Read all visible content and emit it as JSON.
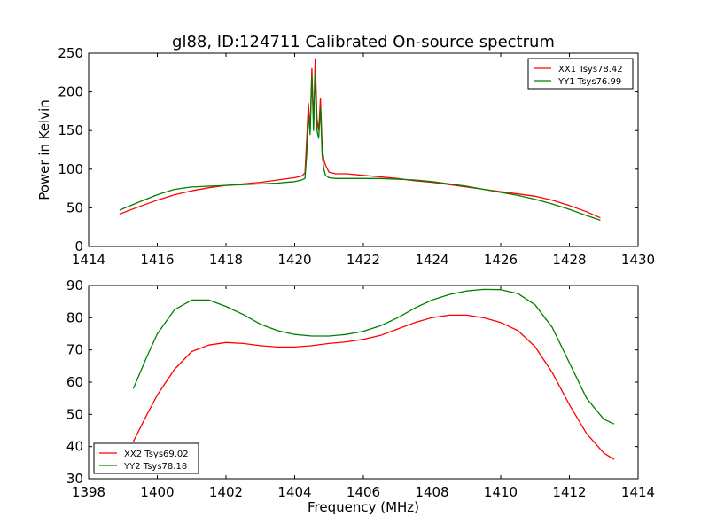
{
  "title": "gl88, ID:124711 Calibrated On-source spectrum",
  "chart_data": [
    {
      "type": "line",
      "ylabel": "Power in Kelvin",
      "xlabel": "",
      "xlim": [
        1414,
        1430
      ],
      "ylim": [
        0,
        250
      ],
      "xticks": [
        1414,
        1416,
        1418,
        1420,
        1422,
        1424,
        1426,
        1428,
        1430
      ],
      "yticks": [
        0,
        50,
        100,
        150,
        200,
        250
      ],
      "legend_position": "top-right",
      "series": [
        {
          "name": "XX1 Tsys78.42",
          "color": "#ff0000",
          "x": [
            1414.9,
            1415.5,
            1416.0,
            1416.5,
            1417.0,
            1417.5,
            1418.0,
            1418.5,
            1419.0,
            1419.5,
            1420.0,
            1420.2,
            1420.3,
            1420.35,
            1420.4,
            1420.45,
            1420.5,
            1420.55,
            1420.6,
            1420.65,
            1420.7,
            1420.75,
            1420.8,
            1420.85,
            1420.9,
            1421.0,
            1421.2,
            1421.5,
            1422.0,
            1422.5,
            1423.0,
            1423.5,
            1424.0,
            1424.5,
            1425.0,
            1425.5,
            1426.0,
            1426.5,
            1427.0,
            1427.5,
            1428.0,
            1428.5,
            1428.9
          ],
          "values": [
            42,
            52,
            60,
            67,
            72,
            76,
            79,
            81,
            83,
            86,
            89,
            91,
            95,
            140,
            185,
            150,
            230,
            160,
            243,
            165,
            150,
            192,
            130,
            112,
            105,
            96,
            94,
            94,
            92,
            90,
            88,
            85,
            83,
            80,
            77,
            74,
            71,
            68,
            65,
            60,
            53,
            45,
            37
          ]
        },
        {
          "name": "YY1 Tsys76.99",
          "color": "#008000",
          "x": [
            1414.9,
            1415.5,
            1416.0,
            1416.5,
            1417.0,
            1417.5,
            1418.0,
            1418.5,
            1419.0,
            1419.5,
            1420.0,
            1420.2,
            1420.3,
            1420.35,
            1420.4,
            1420.45,
            1420.5,
            1420.55,
            1420.6,
            1420.65,
            1420.7,
            1420.75,
            1420.8,
            1420.85,
            1420.9,
            1421.0,
            1421.2,
            1421.5,
            1422.0,
            1422.5,
            1423.0,
            1423.5,
            1424.0,
            1424.5,
            1425.0,
            1425.5,
            1426.0,
            1426.5,
            1427.0,
            1427.5,
            1428.0,
            1428.5,
            1428.9
          ],
          "values": [
            47,
            58,
            67,
            74,
            77,
            78,
            79,
            80,
            81,
            82,
            84,
            86,
            88,
            120,
            170,
            145,
            220,
            150,
            225,
            150,
            140,
            180,
            118,
            100,
            92,
            89,
            88,
            88,
            88,
            88,
            87,
            86,
            84,
            81,
            78,
            74,
            70,
            66,
            61,
            55,
            48,
            40,
            34
          ]
        }
      ]
    },
    {
      "type": "line",
      "ylabel": "",
      "xlabel": "Frequency (MHz)",
      "xlim": [
        1398,
        1414
      ],
      "ylim": [
        30,
        90
      ],
      "xticks": [
        1398,
        1400,
        1402,
        1404,
        1406,
        1408,
        1410,
        1412,
        1414
      ],
      "yticks": [
        30,
        40,
        50,
        60,
        70,
        80,
        90
      ],
      "legend_position": "bottom-left",
      "series": [
        {
          "name": "XX2 Tsys69.02",
          "color": "#ff0000",
          "x": [
            1399.3,
            1399.7,
            1400.0,
            1400.5,
            1401.0,
            1401.5,
            1402.0,
            1402.5,
            1403.0,
            1403.5,
            1404.0,
            1404.5,
            1405.0,
            1405.5,
            1406.0,
            1406.5,
            1407.0,
            1407.5,
            1408.0,
            1408.5,
            1409.0,
            1409.5,
            1410.0,
            1410.5,
            1411.0,
            1411.5,
            1412.0,
            1412.5,
            1413.0,
            1413.3
          ],
          "values": [
            41.5,
            50,
            56,
            64,
            69.5,
            71.5,
            72.3,
            72,
            71.3,
            70.9,
            70.9,
            71.3,
            72,
            72.5,
            73.3,
            74.5,
            76.5,
            78.5,
            80,
            80.8,
            80.8,
            80,
            78.5,
            76,
            71,
            63,
            53,
            44,
            38,
            36
          ]
        },
        {
          "name": "YY2 Tsys78.18",
          "color": "#008000",
          "x": [
            1399.3,
            1399.7,
            1400.0,
            1400.5,
            1401.0,
            1401.5,
            1402.0,
            1402.5,
            1403.0,
            1403.5,
            1404.0,
            1404.5,
            1405.0,
            1405.5,
            1406.0,
            1406.5,
            1407.0,
            1407.5,
            1408.0,
            1408.5,
            1409.0,
            1409.5,
            1410.0,
            1410.5,
            1411.0,
            1411.5,
            1412.0,
            1412.5,
            1413.0,
            1413.3
          ],
          "values": [
            58,
            68,
            75,
            82.5,
            85.5,
            85.5,
            83.5,
            81,
            78,
            76,
            74.8,
            74.3,
            74.3,
            74.8,
            75.8,
            77.5,
            80,
            83,
            85.5,
            87.2,
            88.3,
            88.8,
            88.7,
            87.5,
            84,
            77,
            66,
            55,
            48.5,
            47
          ]
        }
      ]
    }
  ]
}
